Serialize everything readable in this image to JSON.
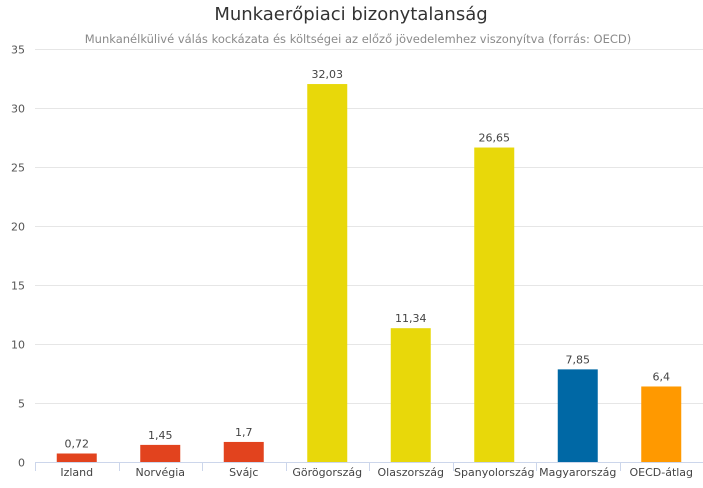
{
  "chart_data": {
    "type": "bar",
    "title": "Munkaerőpiaci bizonytalanság",
    "subtitle": "Munkanélkülivé válás kockázata és költségei az előző jövedelemhez viszonyítva (forrás: OECD)",
    "categories": [
      "Izland",
      "Norvégia",
      "Svájc",
      "Görögország",
      "Olaszország",
      "Spanyolország",
      "Magyarország",
      "OECD-átlag"
    ],
    "values": [
      0.72,
      1.45,
      1.7,
      32.03,
      11.34,
      26.65,
      7.85,
      6.4
    ],
    "value_labels": [
      "0,72",
      "1,45",
      "1,7",
      "32,03",
      "11,34",
      "26,65",
      "7,85",
      "6,4"
    ],
    "bar_colors": [
      "#e2431e",
      "#e2431e",
      "#e2431e",
      "#e8d80a",
      "#e8d80a",
      "#e8d80a",
      "#0068a5",
      "#ff9900"
    ],
    "ylim": [
      0,
      35
    ],
    "yticks": [
      0,
      5,
      10,
      15,
      20,
      25,
      30,
      35
    ],
    "grid": true,
    "legend": "none"
  }
}
